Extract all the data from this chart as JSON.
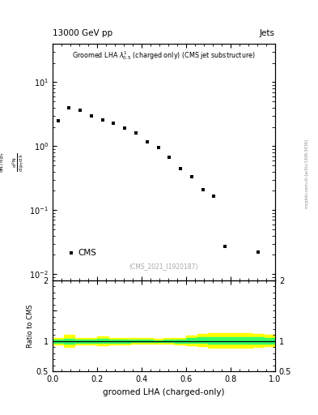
{
  "title_top": "13000 GeV pp",
  "title_right": "Jets",
  "watermark": "(CMS_2021_I1920187)",
  "xlabel": "groomed LHA (charged-only)",
  "ylabel_ratio": "Ratio to CMS",
  "side_label": "mcplots.cern.ch [arXiv:1306.3436]",
  "cms_x": [
    0.025,
    0.075,
    0.125,
    0.175,
    0.225,
    0.275,
    0.325,
    0.375,
    0.425,
    0.475,
    0.525,
    0.575,
    0.625,
    0.675,
    0.725,
    0.775,
    0.925
  ],
  "cms_y": [
    2.5,
    4.0,
    3.6,
    3.0,
    2.6,
    2.3,
    1.9,
    1.6,
    1.15,
    0.95,
    0.68,
    0.45,
    0.33,
    0.21,
    0.165,
    0.027,
    0.022
  ],
  "ylim_main": [
    0.008,
    40
  ],
  "ylim_ratio": [
    0.5,
    2.0
  ],
  "xlim": [
    0.0,
    1.0
  ],
  "ratio_edges": [
    0.0,
    0.05,
    0.1,
    0.15,
    0.2,
    0.25,
    0.3,
    0.35,
    0.4,
    0.45,
    0.5,
    0.55,
    0.6,
    0.65,
    0.7,
    0.75,
    0.8,
    0.85,
    0.9,
    0.95,
    1.0
  ],
  "ratio_green_low": [
    0.975,
    0.96,
    0.975,
    0.975,
    0.965,
    0.975,
    0.975,
    0.98,
    0.98,
    0.985,
    0.98,
    0.975,
    0.97,
    0.965,
    0.955,
    0.955,
    0.955,
    0.955,
    0.96,
    0.96,
    0.96
  ],
  "ratio_green_high": [
    1.025,
    1.04,
    1.025,
    1.025,
    1.035,
    1.025,
    1.025,
    1.02,
    1.02,
    1.015,
    1.02,
    1.025,
    1.05,
    1.06,
    1.07,
    1.07,
    1.07,
    1.07,
    1.065,
    1.055,
    1.05
  ],
  "ratio_yellow_low": [
    0.95,
    0.9,
    0.95,
    0.95,
    0.925,
    0.95,
    0.95,
    0.955,
    0.955,
    0.96,
    0.955,
    0.95,
    0.935,
    0.915,
    0.895,
    0.895,
    0.895,
    0.895,
    0.91,
    0.915,
    0.92
  ],
  "ratio_yellow_high": [
    1.05,
    1.1,
    1.05,
    1.05,
    1.075,
    1.05,
    1.05,
    1.045,
    1.045,
    1.04,
    1.045,
    1.05,
    1.095,
    1.12,
    1.135,
    1.135,
    1.135,
    1.135,
    1.12,
    1.11,
    1.105
  ],
  "marker_color": "#000000",
  "marker_size": 3.5,
  "green_color": "#33ff66",
  "yellow_color": "#ffff00",
  "ratio_line_color": "#000000",
  "fig_width": 3.93,
  "fig_height": 5.12,
  "dpi": 100
}
